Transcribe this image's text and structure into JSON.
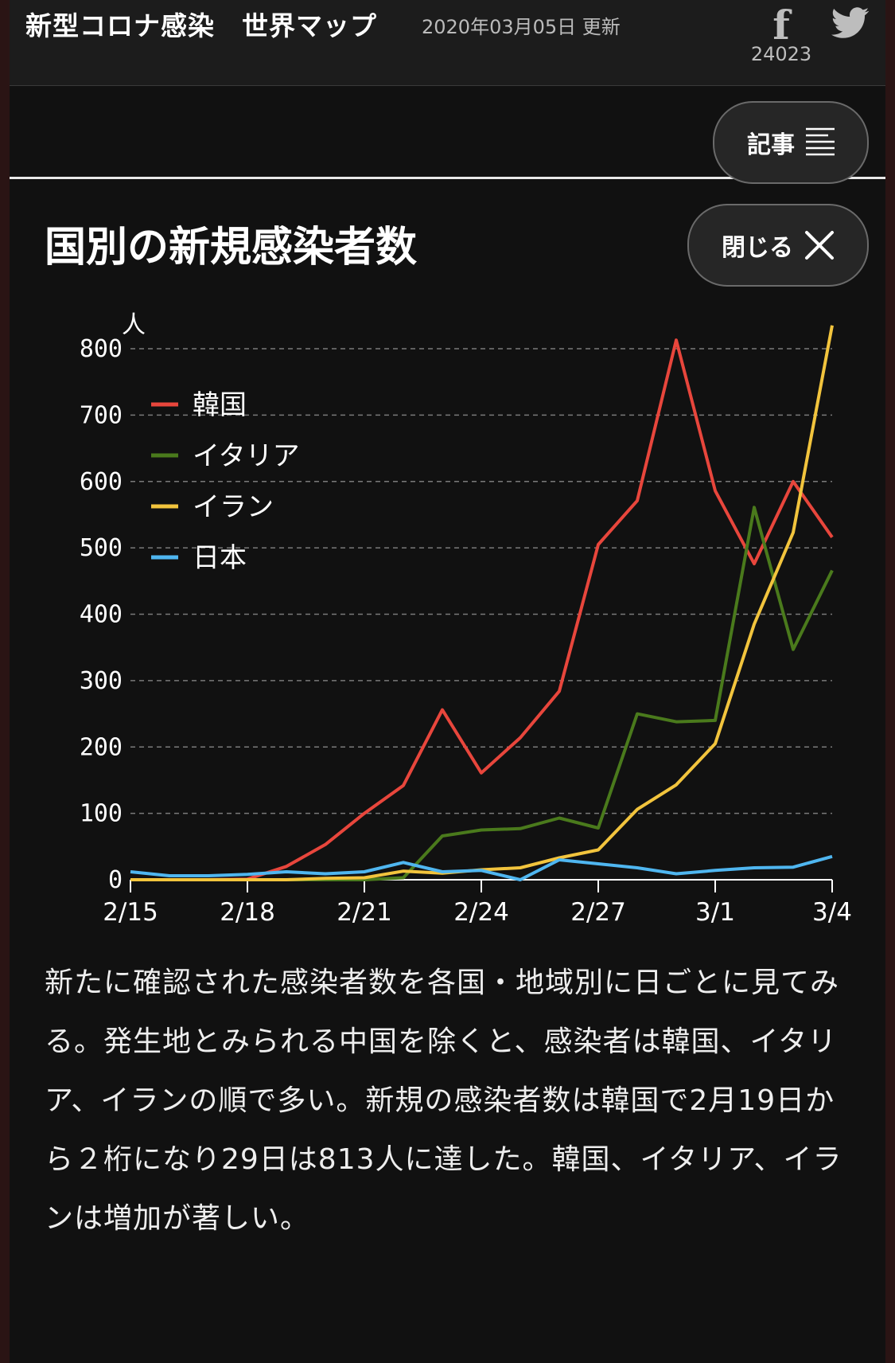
{
  "header": {
    "title": "新型コロナ感染",
    "subtitle": "世界マップ",
    "updated": "2020年03月05日 更新",
    "facebook_count": "24023"
  },
  "nav": {
    "article_label": "記事",
    "close_label": "閉じる"
  },
  "section": {
    "title": "国別の新規感染者数"
  },
  "colors": {
    "korea": "#e8463c",
    "italy": "#4a7a1c",
    "iran": "#f2c43d",
    "japan": "#4fb6f0"
  },
  "chart_data": {
    "type": "line",
    "ylabel": "人",
    "ylim": [
      0,
      800
    ],
    "yticks": [
      0,
      100,
      200,
      300,
      400,
      500,
      600,
      700,
      800
    ],
    "x": [
      "2/15",
      "2/16",
      "2/17",
      "2/18",
      "2/19",
      "2/20",
      "2/21",
      "2/22",
      "2/23",
      "2/24",
      "2/25",
      "2/26",
      "2/27",
      "2/28",
      "2/29",
      "3/1",
      "3/2",
      "3/3",
      "3/4"
    ],
    "xtick_labels": [
      "2/15",
      "2/18",
      "2/21",
      "2/24",
      "2/27",
      "3/1",
      "3/4"
    ],
    "grid": true,
    "legend_position": "top-left",
    "series": [
      {
        "name": "韓国",
        "color": "#e8463c",
        "values": [
          0,
          0,
          0,
          1,
          20,
          53,
          100,
          142,
          256,
          161,
          214,
          284,
          505,
          571,
          813,
          586,
          476,
          600,
          516
        ]
      },
      {
        "name": "イタリア",
        "color": "#4a7a1c",
        "values": [
          0,
          0,
          0,
          0,
          0,
          0,
          0,
          3,
          66,
          75,
          77,
          93,
          78,
          250,
          238,
          240,
          561,
          347,
          466
        ]
      },
      {
        "name": "イラン",
        "color": "#f2c43d",
        "values": [
          0,
          0,
          0,
          0,
          0,
          2,
          3,
          13,
          10,
          15,
          18,
          33,
          45,
          106,
          143,
          205,
          385,
          523,
          835
        ]
      },
      {
        "name": "日本",
        "color": "#4fb6f0",
        "values": [
          12,
          6,
          6,
          8,
          12,
          9,
          12,
          26,
          12,
          14,
          0,
          30,
          24,
          18,
          9,
          14,
          18,
          19,
          35
        ]
      }
    ]
  },
  "description": "新たに確認された感染者数を各国・地域別に日ごとに見てみる。発生地とみられる中国を除くと、感染者は韓国、イタリア、イランの順で多い。新規の感染者数は韓国で2月19日から２桁になり29日は813人に達した。韓国、イタリア、イランは増加が著しい。"
}
